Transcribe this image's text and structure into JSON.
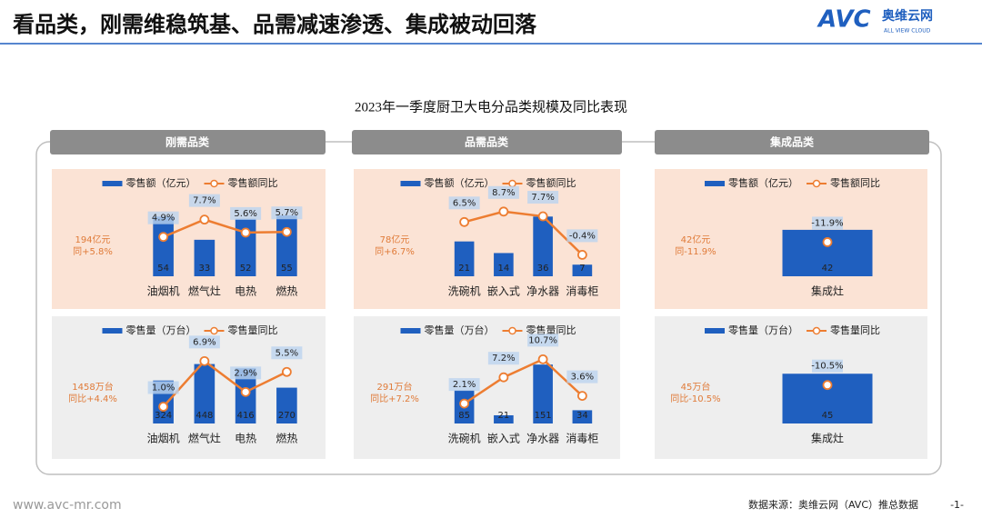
{
  "header": {
    "title": "看品类，刚需维稳筑基、品需减速渗透、集成被动回落",
    "logo": "AVC",
    "logo_cn": "奥维云网",
    "logo_en": "ALL VIEW CLOUD"
  },
  "figure_title": "2023年一季度厨卫大电分品类规模及同比表现",
  "sections": [
    "刚需品类",
    "品需品类",
    "集成品类"
  ],
  "footer": {
    "site": "www.avc-mr.com",
    "source": "数据来源：奥维云网（AVC）推总数据",
    "page": "-1-"
  },
  "chart_data": [
    {
      "type": "bar_line",
      "categories": [
        "油烟机",
        "燃气灶",
        "电热",
        "燃热"
      ],
      "annotations": [
        "194亿元",
        "同+5.8%"
      ],
      "ylim": [
        0,
        60
      ],
      "y2lim": [
        0,
        10
      ],
      "series": [
        {
          "name": "零售额（亿元）",
          "color": "#1f5fbf",
          "values": [
            54,
            33,
            52,
            55
          ]
        },
        {
          "name": "零售额同比",
          "color": "#ed7d31",
          "axis": "y2",
          "values": [
            4.9,
            7.7,
            5.6,
            5.7
          ],
          "value_labels": [
            "4.9%",
            "7.7%",
            "5.6%",
            "5.7%"
          ]
        }
      ]
    },
    {
      "type": "bar_line",
      "categories": [
        "洗碗机",
        "嵌入式",
        "净水器",
        "消毒柜"
      ],
      "annotations": [
        "78亿元",
        "同+6.7%"
      ],
      "ylim": [
        0,
        40
      ],
      "y2lim": [
        -3,
        10
      ],
      "series": [
        {
          "name": "零售额（亿元）",
          "color": "#1f5fbf",
          "values": [
            21,
            14,
            36,
            7
          ]
        },
        {
          "name": "零售额同比",
          "color": "#ed7d31",
          "axis": "y2",
          "values": [
            6.5,
            8.7,
            7.7,
            -0.4
          ],
          "value_labels": [
            "6.5%",
            "8.7%",
            "7.7%",
            "-0.4%"
          ]
        }
      ]
    },
    {
      "type": "bar_line",
      "categories": [
        "集成灶"
      ],
      "annotations": [
        "42亿元",
        "同-11.9%"
      ],
      "ylim": [
        0,
        60
      ],
      "y2lim": [
        -20,
        0
      ],
      "series": [
        {
          "name": "零售额（亿元）",
          "color": "#1f5fbf",
          "values": [
            42
          ]
        },
        {
          "name": "零售额同比",
          "color": "#ed7d31",
          "axis": "y2",
          "values": [
            -11.9
          ],
          "value_labels": [
            "-11.9%"
          ]
        }
      ]
    },
    {
      "type": "bar_line",
      "categories": [
        "油烟机",
        "燃气灶",
        "电热",
        "燃热"
      ],
      "annotations": [
        "1458万台",
        "同比+4.4%"
      ],
      "ylim": [
        0,
        500
      ],
      "y2lim": [
        0,
        8
      ],
      "series": [
        {
          "name": "零售量（万台）",
          "color": "#1f5fbf",
          "values": [
            324,
            448,
            416,
            270
          ]
        },
        {
          "name": "零售量同比",
          "color": "#ed7d31",
          "axis": "y2",
          "values": [
            1.0,
            6.9,
            2.9,
            5.5
          ],
          "value_labels": [
            "1.0%",
            "6.9%",
            "2.9%",
            "5.5%"
          ]
        }
      ]
    },
    {
      "type": "bar_line",
      "categories": [
        "洗碗机",
        "嵌入式",
        "净水器",
        "消毒柜"
      ],
      "annotations": [
        "291万台",
        "同比+7.2%"
      ],
      "ylim": [
        0,
        170
      ],
      "y2lim": [
        0,
        12
      ],
      "series": [
        {
          "name": "零售量（万台）",
          "color": "#1f5fbf",
          "values": [
            85,
            21,
            151,
            34
          ]
        },
        {
          "name": "零售量同比",
          "color": "#ed7d31",
          "axis": "y2",
          "values": [
            2.1,
            7.2,
            10.7,
            3.6
          ],
          "value_labels": [
            "2.1%",
            "7.2%",
            "10.7%",
            "3.6%"
          ]
        }
      ]
    },
    {
      "type": "bar_line",
      "categories": [
        "集成灶"
      ],
      "annotations": [
        "45万台",
        "同比-10.5%"
      ],
      "ylim": [
        0,
        60
      ],
      "y2lim": [
        -20,
        0
      ],
      "series": [
        {
          "name": "零售量（万台）",
          "color": "#1f5fbf",
          "values": [
            45
          ]
        },
        {
          "name": "零售量同比",
          "color": "#ed7d31",
          "axis": "y2",
          "values": [
            -10.5
          ],
          "value_labels": [
            "-10.5%"
          ]
        }
      ]
    }
  ]
}
